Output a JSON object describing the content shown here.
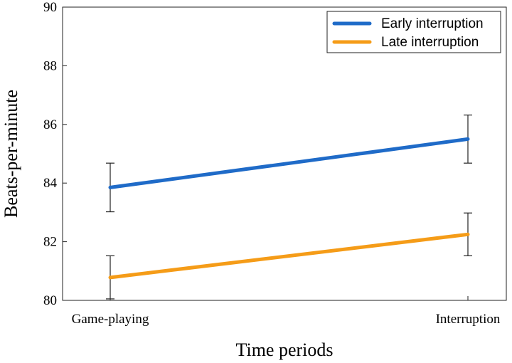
{
  "chart_data": {
    "type": "line",
    "title": "",
    "xlabel": "Time periods",
    "ylabel": "Beats-per-minute",
    "categories": [
      "Game-playing",
      "Interruption"
    ],
    "ylim": [
      80,
      90
    ],
    "yticks": [
      80,
      82,
      84,
      86,
      88,
      90
    ],
    "grid": false,
    "legend_position": "top-right",
    "series": [
      {
        "name": "Early interruption",
        "color": "#1f6bc8",
        "values": [
          83.85,
          85.5
        ],
        "error_low": [
          83.02,
          84.68
        ],
        "error_high": [
          84.68,
          86.32
        ]
      },
      {
        "name": "Late interruption",
        "color": "#f59c18",
        "values": [
          80.78,
          82.25
        ],
        "error_low": [
          80.05,
          81.52
        ],
        "error_high": [
          81.52,
          82.98
        ]
      }
    ]
  }
}
